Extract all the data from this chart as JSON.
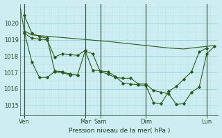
{
  "bg_color": "#cceef2",
  "line_color": "#2d5a1b",
  "xlabel": "Pression niveau de la mer( hPa )",
  "ylim": [
    1014.4,
    1021.2
  ],
  "yticks": [
    1015,
    1016,
    1017,
    1018,
    1019,
    1020
  ],
  "xlim": [
    0,
    52
  ],
  "xtick_labels": [
    "Ven",
    "Mar",
    "Sam",
    "Dim",
    "Lun"
  ],
  "xtick_positions": [
    1,
    17,
    21,
    33,
    49
  ],
  "vline_positions": [
    1,
    17,
    21,
    33,
    49
  ],
  "smooth_line_x": [
    0,
    1,
    3,
    5,
    7,
    9,
    11,
    13,
    15,
    17,
    19,
    21,
    23,
    25,
    27,
    29,
    31,
    33,
    35,
    37,
    39,
    41,
    43,
    45,
    47,
    49,
    51
  ],
  "smooth_line_y": [
    1020.9,
    1019.55,
    1019.3,
    1019.25,
    1019.22,
    1019.18,
    1019.14,
    1019.1,
    1019.06,
    1019.02,
    1018.98,
    1018.94,
    1018.9,
    1018.85,
    1018.8,
    1018.75,
    1018.7,
    1018.65,
    1018.6,
    1018.55,
    1018.5,
    1018.47,
    1018.44,
    1018.5,
    1018.55,
    1018.6,
    1018.65
  ],
  "line_a_x": [
    1,
    3,
    5,
    7,
    9,
    11,
    13,
    15,
    17,
    19,
    21,
    23,
    25,
    27,
    29,
    31,
    33,
    35,
    37,
    39,
    41,
    43,
    45,
    47,
    49,
    51
  ],
  "line_a_y": [
    1019.5,
    1017.65,
    1016.7,
    1016.7,
    1017.05,
    1017.0,
    1016.85,
    1016.85,
    1018.3,
    1018.15,
    1017.05,
    1016.9,
    1016.7,
    1016.65,
    1016.65,
    1016.3,
    1016.3,
    1015.9,
    1015.8,
    1015.7,
    1015.05,
    1015.1,
    1015.8,
    1016.1,
    1018.15,
    1018.6
  ],
  "line_b_x": [
    1,
    3,
    5,
    7,
    9,
    11,
    13,
    15,
    17,
    19,
    21,
    23,
    25,
    27,
    29,
    31,
    33,
    35,
    37,
    39,
    41,
    43,
    45,
    47,
    49
  ],
  "line_b_y": [
    1019.4,
    1019.1,
    1019.05,
    1019.0,
    1017.95,
    1018.15,
    1018.1,
    1018.05,
    1018.35,
    1017.15,
    1017.1,
    1017.05,
    1016.75,
    1016.35,
    1016.3,
    1016.25,
    1016.2,
    1015.15,
    1015.1,
    1015.85,
    1016.15,
    1016.6,
    1017.05,
    1018.25,
    1018.5
  ],
  "line_c_x": [
    1,
    3,
    5,
    7,
    9,
    11,
    13,
    15
  ],
  "line_c_y": [
    1020.5,
    1019.4,
    1019.2,
    1019.1,
    1017.1,
    1017.05,
    1016.9,
    1016.85
  ]
}
